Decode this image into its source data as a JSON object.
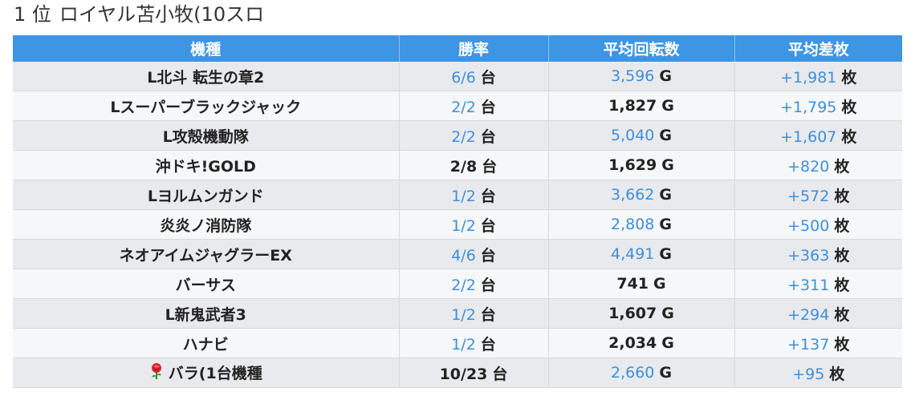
{
  "title": {
    "rank": "1 位",
    "store": "ロイヤル苫小牧(10スロ"
  },
  "table": {
    "headers": [
      "機種",
      "勝率",
      "平均回転数",
      "平均差枚"
    ],
    "rows": [
      {
        "name": "L北斗 転生の章2",
        "win": "6/6",
        "win_unit": "台",
        "spins": "3,596",
        "spins_unit": "G",
        "diff": "+1,981",
        "diff_unit": "枚",
        "win_hl": true,
        "spins_hl": true
      },
      {
        "name": "Lスーパーブラックジャック",
        "win": "2/2",
        "win_unit": "台",
        "spins": "1,827",
        "spins_unit": "G",
        "diff": "+1,795",
        "diff_unit": "枚",
        "win_hl": true,
        "spins_hl": false
      },
      {
        "name": "L攻殻機動隊",
        "win": "2/2",
        "win_unit": "台",
        "spins": "5,040",
        "spins_unit": "G",
        "diff": "+1,607",
        "diff_unit": "枚",
        "win_hl": true,
        "spins_hl": true
      },
      {
        "name": "沖ドキ!GOLD",
        "win": "2/8",
        "win_unit": "台",
        "spins": "1,629",
        "spins_unit": "G",
        "diff": "+820",
        "diff_unit": "枚",
        "win_hl": false,
        "spins_hl": false
      },
      {
        "name": "Lヨルムンガンド",
        "win": "1/2",
        "win_unit": "台",
        "spins": "3,662",
        "spins_unit": "G",
        "diff": "+572",
        "diff_unit": "枚",
        "win_hl": true,
        "spins_hl": true
      },
      {
        "name": "炎炎ノ消防隊",
        "win": "1/2",
        "win_unit": "台",
        "spins": "2,808",
        "spins_unit": "G",
        "diff": "+500",
        "diff_unit": "枚",
        "win_hl": true,
        "spins_hl": true
      },
      {
        "name": "ネオアイムジャグラーEX",
        "win": "4/6",
        "win_unit": "台",
        "spins": "4,491",
        "spins_unit": "G",
        "diff": "+363",
        "diff_unit": "枚",
        "win_hl": true,
        "spins_hl": true
      },
      {
        "name": "バーサス",
        "win": "2/2",
        "win_unit": "台",
        "spins": "741",
        "spins_unit": "G",
        "diff": "+311",
        "diff_unit": "枚",
        "win_hl": true,
        "spins_hl": false
      },
      {
        "name": "L新鬼武者3",
        "win": "1/2",
        "win_unit": "台",
        "spins": "1,607",
        "spins_unit": "G",
        "diff": "+294",
        "diff_unit": "枚",
        "win_hl": true,
        "spins_hl": false
      },
      {
        "name": "ハナビ",
        "win": "1/2",
        "win_unit": "台",
        "spins": "2,034",
        "spins_unit": "G",
        "diff": "+137",
        "diff_unit": "枚",
        "win_hl": true,
        "spins_hl": false
      },
      {
        "name": "バラ(1台機種",
        "icon": "rose-icon",
        "win": "10/23",
        "win_unit": "台",
        "spins": "2,660",
        "spins_unit": "G",
        "diff": "+95",
        "diff_unit": "枚",
        "win_hl": false,
        "spins_hl": true
      }
    ]
  },
  "colors": {
    "header_bg": "#3d95e3",
    "highlight": "#3d8fdb",
    "row_odd": "#e9eaed",
    "row_even": "#f6f7f8"
  }
}
